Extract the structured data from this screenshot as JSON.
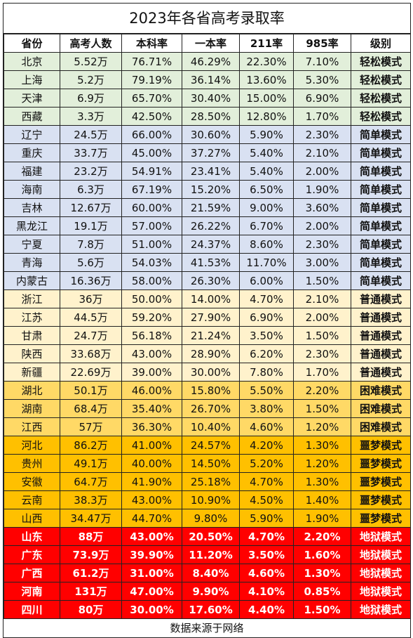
{
  "title": "2023年各省高考录取率",
  "headers": [
    "省份",
    "高考人数",
    "本科率",
    "一本率",
    "211率",
    "985率",
    "级别"
  ],
  "rows": [
    {
      "group": "easy",
      "cells": [
        "北京",
        "5.52万",
        "76.71%",
        "46.29%",
        "22.30%",
        "7.10%",
        "轻松模式"
      ]
    },
    {
      "group": "easy",
      "cells": [
        "上海",
        "5.2万",
        "79.19%",
        "36.14%",
        "13.60%",
        "5.30%",
        "轻松模式"
      ]
    },
    {
      "group": "easy",
      "cells": [
        "天津",
        "6.9万",
        "65.70%",
        "30.40%",
        "15.00%",
        "6.90%",
        "轻松模式"
      ]
    },
    {
      "group": "easy",
      "cells": [
        "西藏",
        "3.3万",
        "42.50%",
        "28.50%",
        "12.80%",
        "1.70%",
        "轻松模式"
      ]
    },
    {
      "group": "simple",
      "cells": [
        "辽宁",
        "24.5万",
        "66.00%",
        "30.60%",
        "5.90%",
        "2.30%",
        "简单模式"
      ]
    },
    {
      "group": "simple",
      "cells": [
        "重庆",
        "33.7万",
        "45.00%",
        "37.27%",
        "5.40%",
        "2.10%",
        "简单模式"
      ]
    },
    {
      "group": "simple",
      "cells": [
        "福建",
        "23.2万",
        "54.91%",
        "23.41%",
        "5.40%",
        "2.00%",
        "简单模式"
      ]
    },
    {
      "group": "simple",
      "cells": [
        "海南",
        "6.3万",
        "67.19%",
        "15.20%",
        "6.50%",
        "1.90%",
        "简单模式"
      ]
    },
    {
      "group": "simple",
      "cells": [
        "吉林",
        "12.67万",
        "60.00%",
        "21.59%",
        "9.00%",
        "3.60%",
        "简单模式"
      ]
    },
    {
      "group": "simple",
      "cells": [
        "黑龙江",
        "19.1万",
        "57.00%",
        "26.22%",
        "6.70%",
        "2.00%",
        "简单模式"
      ]
    },
    {
      "group": "simple",
      "cells": [
        "宁夏",
        "7.8万",
        "51.00%",
        "24.37%",
        "8.60%",
        "2.30%",
        "简单模式"
      ]
    },
    {
      "group": "simple",
      "cells": [
        "青海",
        "5.6万",
        "54.03%",
        "41.53%",
        "11.70%",
        "3.00%",
        "简单模式"
      ]
    },
    {
      "group": "simple",
      "cells": [
        "内蒙古",
        "16.36万",
        "58.00%",
        "26.30%",
        "6.00%",
        "1.50%",
        "简单模式"
      ]
    },
    {
      "group": "normal",
      "cells": [
        "浙江",
        "36万",
        "50.00%",
        "14.00%",
        "4.70%",
        "2.10%",
        "普通模式"
      ]
    },
    {
      "group": "normal",
      "cells": [
        "江苏",
        "44.5万",
        "59.20%",
        "27.90%",
        "6.90%",
        "2.00%",
        "普通模式"
      ]
    },
    {
      "group": "normal",
      "cells": [
        "甘肃",
        "24.7万",
        "56.18%",
        "21.24%",
        "3.50%",
        "1.50%",
        "普通模式"
      ]
    },
    {
      "group": "normal",
      "cells": [
        "陕西",
        "33.68万",
        "43.00%",
        "28.90%",
        "6.20%",
        "2.30%",
        "普通模式"
      ]
    },
    {
      "group": "normal",
      "cells": [
        "新疆",
        "22.69万",
        "39.00%",
        "30.00%",
        "7.80%",
        "1.70%",
        "普通模式"
      ]
    },
    {
      "group": "hard",
      "cells": [
        "湖北",
        "50.1万",
        "46.00%",
        "15.80%",
        "5.50%",
        "2.20%",
        "困难模式"
      ]
    },
    {
      "group": "hard",
      "cells": [
        "湖南",
        "68.4万",
        "35.40%",
        "26.70%",
        "3.80%",
        "1.50%",
        "困难模式"
      ]
    },
    {
      "group": "hard",
      "cells": [
        "江西",
        "57万",
        "36.30%",
        "10.40%",
        "4.60%",
        "1.20%",
        "困难模式"
      ]
    },
    {
      "group": "nightmare",
      "cells": [
        "河北",
        "86.2万",
        "41.00%",
        "24.57%",
        "4.20%",
        "1.30%",
        "噩梦模式"
      ]
    },
    {
      "group": "nightmare",
      "cells": [
        "贵州",
        "49.1万",
        "40.00%",
        "14.50%",
        "5.20%",
        "1.20%",
        "噩梦模式"
      ]
    },
    {
      "group": "nightmare",
      "cells": [
        "安徽",
        "64.7万",
        "41.90%",
        "25.18%",
        "4.70%",
        "1.30%",
        "噩梦模式"
      ]
    },
    {
      "group": "nightmare",
      "cells": [
        "云南",
        "38.3万",
        "43.00%",
        "10.90%",
        "4.50%",
        "1.40%",
        "噩梦模式"
      ]
    },
    {
      "group": "nightmare",
      "cells": [
        "山西",
        "34.47万",
        "44.70%",
        "9.80%",
        "5.90%",
        "1.90%",
        "噩梦模式"
      ]
    },
    {
      "group": "hell",
      "cells": [
        "山东",
        "88万",
        "43.00%",
        "20.50%",
        "4.70%",
        "2.20%",
        "地狱模式"
      ]
    },
    {
      "group": "hell",
      "cells": [
        "广东",
        "73.9万",
        "39.90%",
        "11.20%",
        "3.50%",
        "1.60%",
        "地狱模式"
      ]
    },
    {
      "group": "hell",
      "cells": [
        "广西",
        "61.2万",
        "31.00%",
        "8.40%",
        "4.60%",
        "1.30%",
        "地狱模式"
      ]
    },
    {
      "group": "hell",
      "cells": [
        "河南",
        "131万",
        "47.00%",
        "9.90%",
        "4.10%",
        "0.85%",
        "地狱模式"
      ]
    },
    {
      "group": "hell",
      "cells": [
        "四川",
        "80万",
        "30.00%",
        "17.60%",
        "4.40%",
        "1.50%",
        "地狱模式"
      ]
    }
  ],
  "group_colors": {
    "easy": "#e2efda",
    "simple": "#d9e1f2",
    "normal": "#fff2cc",
    "hard": "#ffd966",
    "nightmare": "#ffc000",
    "hell": "#ff0000"
  },
  "footer": "数据来源于网络"
}
